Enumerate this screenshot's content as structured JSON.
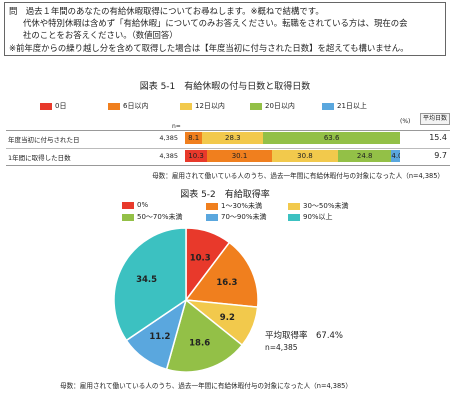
{
  "question": {
    "line1": "問　過去１年間のあなたの有給休暇取得についてお尋ねします。※概ねで結構です。",
    "line2": "代休や特別休暇は含めず「有給休暇」についてのみお答えください。転職をされている方は、現在の会",
    "line3": "社のことをお答えください。（数値回答）",
    "line4": "※前年度からの繰り越し分を含めて取得した場合は【年度当初に付与された日数】を超えても構いません。"
  },
  "fig1": {
    "title": "図表 5-1　有給休暇の付与日数と取得日数",
    "pct_label": "(%)",
    "n_label": "n=",
    "avg_label": "平均日数",
    "note": "母数：雇用されて働いている人のうち、過去一年間に有給休暇付与の対象になった人（n=4,385）"
  },
  "fig2": {
    "title": "図表 5-2　有給取得率",
    "avg_rate": "平均取得率　67.4%",
    "n": "n=4,385",
    "note": "母数：雇用されて働いている人のうち、過去一年間に有給休暇付与の対象になった人（n=4,385）"
  },
  "chart_data": [
    {
      "type": "bar",
      "orientation": "horizontal-stacked",
      "categories": [
        "年度当初に付与された日",
        "1年間に取得した日数"
      ],
      "n": [
        "4,385",
        "4,385"
      ],
      "averages": [
        "15.4",
        "9.7"
      ],
      "series": [
        {
          "name": "0日",
          "color": "#e8392b",
          "values": [
            0,
            10.3
          ]
        },
        {
          "name": "6日以内",
          "color": "#f07f1e",
          "values": [
            8.1,
            30.1
          ]
        },
        {
          "name": "12日以内",
          "color": "#f2c94c",
          "values": [
            28.3,
            30.8
          ]
        },
        {
          "name": "20日以内",
          "color": "#93c047",
          "values": [
            63.6,
            24.8
          ]
        },
        {
          "name": "21日以上",
          "color": "#5aa7de",
          "values": [
            0,
            4.0
          ]
        }
      ],
      "value_labels": [
        [
          "",
          "8.1",
          "28.3",
          "63.6",
          ""
        ],
        [
          "10.3",
          "30.1",
          "30.8",
          "24.8",
          "4.0"
        ]
      ]
    },
    {
      "type": "pie",
      "labels": [
        "0%",
        "1～30%未満",
        "30～50%未満",
        "50～70%未満",
        "70～90%未満",
        "90%以上"
      ],
      "values": [
        10.3,
        16.3,
        9.2,
        18.6,
        11.2,
        34.5
      ],
      "value_labels": [
        "10.3",
        "16.3",
        "9.2",
        "18.6",
        "11.2",
        "34.5"
      ],
      "colors": [
        "#e8392b",
        "#f07f1e",
        "#f2c94c",
        "#93c047",
        "#5aa7de",
        "#3cc1c1"
      ]
    }
  ]
}
